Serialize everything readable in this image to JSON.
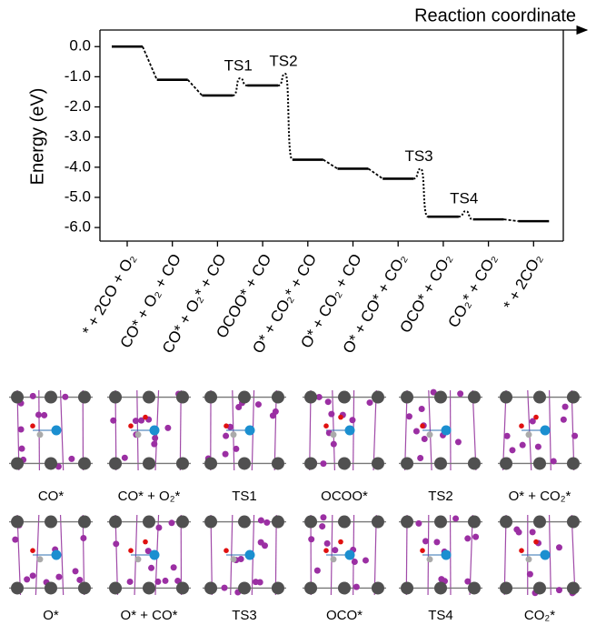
{
  "chart_data": {
    "type": "energy-profile",
    "x_label": "Reaction coordinate",
    "y_label": "Energy (eV)",
    "categories": [
      "* + 2CO + O₂",
      "CO* + O₂ + CO",
      "CO* + O₂* + CO",
      "OCOO* + CO",
      "O* + CO₂* + CO",
      "O* + CO₂ + CO",
      "O* + CO* + CO₂",
      "OCO* + CO₂",
      "CO₂* + CO₂",
      "* + 2CO₂"
    ],
    "values": [
      0.0,
      -1.1,
      -1.62,
      -1.29,
      -3.75,
      -4.05,
      -4.38,
      -5.64,
      -5.73,
      -5.79
    ],
    "ts_labels": [
      null,
      null,
      "TS1",
      "TS2",
      null,
      null,
      "TS3",
      "TS4",
      null
    ],
    "ts_values": [
      null,
      null,
      -1.05,
      -0.9,
      null,
      null,
      -4.05,
      -5.46,
      null
    ],
    "color": "#000000",
    "ylim": [
      -6.45,
      0.55
    ],
    "yticks": [
      {
        "value": 0,
        "label": "0.0"
      },
      {
        "value": -1,
        "label": "-1.0"
      },
      {
        "value": -2,
        "label": "-2.0"
      },
      {
        "value": -3,
        "label": "-3.0"
      },
      {
        "value": -4,
        "label": "-4.0"
      },
      {
        "value": -5,
        "label": "-5.0"
      },
      {
        "value": -6,
        "label": "-6.0"
      }
    ]
  },
  "panels": [
    {
      "caption": "CO*"
    },
    {
      "caption": "CO* + O₂*"
    },
    {
      "caption": "TS1"
    },
    {
      "caption": "OCOO*"
    },
    {
      "caption": "TS2"
    },
    {
      "caption": "O* + CO₂*"
    },
    {
      "caption": "O*"
    },
    {
      "caption": "O* + CO*"
    },
    {
      "caption": "TS3"
    },
    {
      "caption": "OCO*"
    },
    {
      "caption": "TS4"
    },
    {
      "caption": "CO₂*"
    }
  ]
}
